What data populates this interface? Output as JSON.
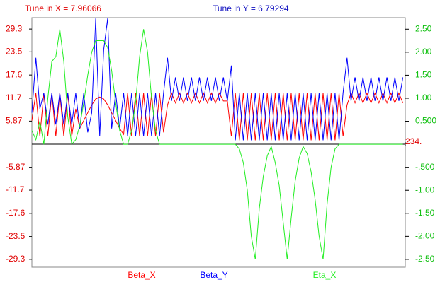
{
  "chart_data": {
    "type": "line",
    "titles": [
      "Tune in X = 7.96066",
      "Tune in Y = 6.79294"
    ],
    "x": [
      0,
      2.5,
      5,
      7.5,
      10,
      12.5,
      15,
      17.5,
      20,
      22.5,
      25,
      27.5,
      30,
      32.5,
      35,
      37.5,
      40,
      42.5,
      45,
      47.5,
      50,
      52.5,
      55,
      57.5,
      60,
      62.5,
      65,
      67.5,
      70,
      72.5,
      75,
      77.5,
      80,
      82.5,
      85,
      87.5,
      90,
      92.5,
      95,
      97.5,
      100,
      102.5,
      105,
      107.5,
      110,
      112.5,
      115,
      117.5,
      120,
      122.5,
      125,
      127.5,
      130,
      132.5,
      135,
      137.5,
      140,
      142.5,
      145,
      147.5,
      150,
      152.5,
      155,
      157.5,
      160,
      162.5,
      165,
      167.5,
      170,
      172.5,
      175,
      177.5,
      180,
      182.5,
      185,
      187.5,
      190,
      192.5,
      195,
      197.5,
      200,
      202.5,
      205,
      207.5,
      210,
      212.5,
      215,
      217.5,
      220,
      222.5,
      225,
      227.5,
      230,
      232.5
    ],
    "xlim": [
      0,
      234
    ],
    "xticks": [
      {
        "value": 234,
        "label": "234."
      }
    ],
    "ylim": [
      -31.3,
      32.2
    ],
    "yticks": [
      -29.3,
      -23.5,
      -17.6,
      -11.7,
      -5.87,
      5.87,
      11.7,
      17.6,
      23.5,
      29.3
    ],
    "y2lim": [
      -2.67,
      2.75
    ],
    "y2ticks": [
      {
        "value": -2.5,
        "label": "-2.50"
      },
      {
        "value": -2,
        "label": "-2.00"
      },
      {
        "value": -1.5,
        "label": "-1.50"
      },
      {
        "value": -1,
        "label": "-1.00"
      },
      {
        "value": -0.5,
        "label": "-.500"
      },
      {
        "value": 0.5,
        "label": "0.500"
      },
      {
        "value": 1,
        "label": "1.00"
      },
      {
        "value": 1.5,
        "label": "1.50"
      },
      {
        "value": 2,
        "label": "2.00"
      },
      {
        "value": 2.5,
        "label": "2.50"
      }
    ],
    "series": [
      {
        "name": "Beta_X",
        "color": "#ff0000",
        "values": [
          6,
          13,
          2,
          13,
          2,
          13,
          2,
          13,
          2,
          13,
          2,
          9,
          4,
          6,
          8,
          10,
          11.5,
          12,
          11.5,
          10,
          8,
          6,
          4,
          2.5,
          13,
          2,
          13,
          2,
          13,
          2,
          13,
          2,
          13,
          3,
          10,
          13,
          10.5,
          13,
          10.5,
          13,
          10.5,
          13,
          10.5,
          13,
          10.5,
          13,
          10.5,
          13,
          11,
          11,
          2,
          13,
          1,
          13,
          1,
          13,
          1,
          13,
          1,
          13,
          1,
          13,
          1,
          13,
          1,
          13,
          1,
          13,
          1,
          13,
          1,
          13,
          1,
          13,
          1,
          13,
          1,
          13,
          2,
          10,
          13,
          10.5,
          13,
          10.5,
          13,
          10.5,
          13,
          10.5,
          13,
          10.5,
          13,
          10.5,
          13,
          10.5
        ]
      },
      {
        "name": "Beta_Y",
        "color": "#0000ff",
        "values": [
          8,
          22,
          9,
          13,
          5,
          13,
          5,
          13,
          5,
          13,
          5,
          13,
          4,
          13,
          3,
          8,
          32,
          2,
          24,
          32,
          4,
          13,
          4,
          13,
          2,
          13,
          2,
          13,
          2,
          13,
          2,
          13,
          2,
          13,
          22,
          11,
          17,
          11,
          17,
          11,
          17,
          11,
          17,
          11,
          17,
          11,
          17,
          11,
          17,
          11,
          20,
          1,
          13,
          1,
          13,
          1,
          13,
          1,
          13,
          1,
          13,
          1,
          13,
          1,
          13,
          1,
          13,
          1,
          13,
          1,
          13,
          1,
          13,
          1,
          13,
          1,
          13,
          1,
          13,
          22,
          11,
          17,
          11,
          17,
          11,
          17,
          11,
          17,
          11,
          17,
          11,
          17,
          11,
          17
        ]
      },
      {
        "name": "Eta_X",
        "color": "#22ee22",
        "axis": "y2",
        "values": [
          0.3,
          0.1,
          0.5,
          0,
          1.0,
          1.8,
          1.9,
          2.5,
          1.8,
          0.6,
          0,
          0.1,
          0.4,
          0.9,
          1.5,
          2.0,
          2.25,
          2.25,
          2.25,
          2.1,
          1.6,
          0.9,
          0.3,
          0,
          0,
          0.3,
          0.9,
          1.9,
          2.5,
          2.0,
          1.0,
          0.3,
          0,
          0,
          0,
          0,
          0,
          0,
          0,
          0,
          0,
          0,
          0,
          0,
          0,
          0,
          0,
          0,
          0,
          0,
          0,
          0,
          -0.1,
          -0.4,
          -1.0,
          -2.0,
          -2.5,
          -1.4,
          -0.7,
          -0.25,
          -0.05,
          -0.4,
          -0.9,
          -1.7,
          -2.5,
          -1.6,
          -0.8,
          -0.3,
          -0.05,
          -0.2,
          -0.6,
          -1.2,
          -2.0,
          -2.5,
          -1.3,
          -0.5,
          -0.1,
          0,
          0,
          0,
          0,
          0,
          0,
          0,
          0,
          0,
          0,
          0,
          0,
          0,
          0,
          0,
          0,
          0
        ]
      }
    ]
  }
}
